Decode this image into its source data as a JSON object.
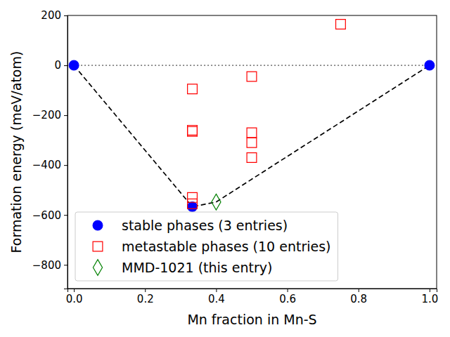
{
  "chart_data": {
    "type": "scatter",
    "xlabel": "Mn fraction in Mn-S",
    "ylabel": "Formation energy (meV/atom)",
    "xlim": [
      -0.018,
      1.02
    ],
    "ylim": [
      -895,
      200
    ],
    "xticks": [
      {
        "value": 0,
        "label": "0.0"
      },
      {
        "value": 0.2,
        "label": "0.2"
      },
      {
        "value": 0.4,
        "label": "0.4"
      },
      {
        "value": 0.6,
        "label": "0.6"
      },
      {
        "value": 0.8,
        "label": "0.8"
      },
      {
        "value": 1,
        "label": "1.0"
      }
    ],
    "yticks": [
      {
        "value": -800,
        "label": "−800"
      },
      {
        "value": -600,
        "label": "−600"
      },
      {
        "value": -400,
        "label": "−400"
      },
      {
        "value": -200,
        "label": "−200"
      },
      0,
      200
    ],
    "legend": "lower left",
    "series": [
      {
        "type": "line",
        "color": "#808080",
        "line_style": "dotted",
        "x": [
          0,
          1
        ],
        "values": [
          0,
          0
        ]
      },
      {
        "type": "line",
        "color": "#000000",
        "line_style": "dashed",
        "x": [
          0,
          0.333,
          0.4,
          1
        ],
        "values": [
          0,
          -567,
          -548,
          0
        ]
      },
      {
        "name": "stable phases (3 entries)",
        "type": "scatter",
        "marker": "circle",
        "color": "#0000ff",
        "x": [
          0,
          0.333,
          1
        ],
        "values": [
          0,
          -567,
          0
        ]
      },
      {
        "name": "metastable phases (10 entries)",
        "type": "scatter",
        "marker": "open-square",
        "color": "#ff0000",
        "x": [
          0.333,
          0.333,
          0.333,
          0.333,
          0.333,
          0.5,
          0.5,
          0.5,
          0.5,
          0.75
        ],
        "values": [
          -95,
          -260,
          -265,
          -530,
          -555,
          -45,
          -270,
          -310,
          -370,
          165
        ]
      },
      {
        "name": "MMD-1021 (this entry)",
        "type": "scatter",
        "marker": "open-diamond",
        "color": "#008000",
        "x": [
          0.4
        ],
        "values": [
          -548
        ]
      }
    ]
  }
}
